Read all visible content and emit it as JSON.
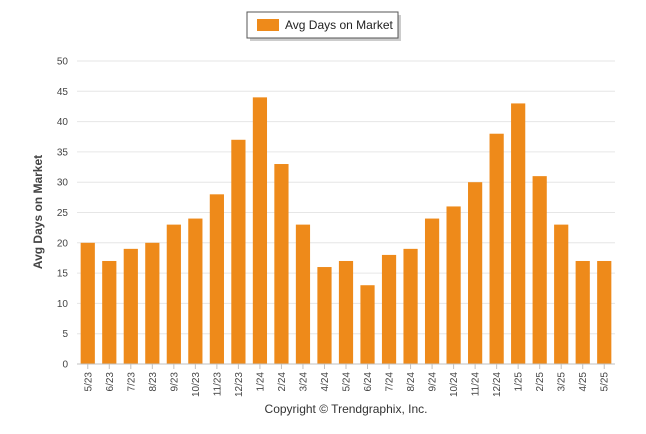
{
  "colors": {
    "bar": "#EE8A1A",
    "grid": "#e6e6e6",
    "axis": "#c0c0c0"
  },
  "legend": {
    "label": "Avg Days on Market"
  },
  "credit": "Copyright © Trendgraphix, Inc.",
  "chart_data": {
    "type": "bar",
    "title": "",
    "xlabel": "",
    "ylabel": "Avg Days on Market",
    "ylim": [
      0,
      50
    ],
    "yticks": [
      0,
      5,
      10,
      15,
      20,
      25,
      30,
      35,
      40,
      45,
      50
    ],
    "grid": true,
    "legend_position": "top-center",
    "categories": [
      "5/23",
      "6/23",
      "7/23",
      "8/23",
      "9/23",
      "10/23",
      "11/23",
      "12/23",
      "1/24",
      "2/24",
      "3/24",
      "4/24",
      "5/24",
      "6/24",
      "7/24",
      "8/24",
      "9/24",
      "10/24",
      "11/24",
      "12/24",
      "1/25",
      "2/25",
      "3/25",
      "4/25",
      "5/25"
    ],
    "series": [
      {
        "name": "Avg Days on Market",
        "values": [
          20,
          17,
          19,
          20,
          23,
          24,
          28,
          37,
          44,
          33,
          23,
          16,
          17,
          13,
          18,
          19,
          24,
          26,
          30,
          38,
          43,
          31,
          23,
          17,
          17
        ]
      }
    ]
  }
}
